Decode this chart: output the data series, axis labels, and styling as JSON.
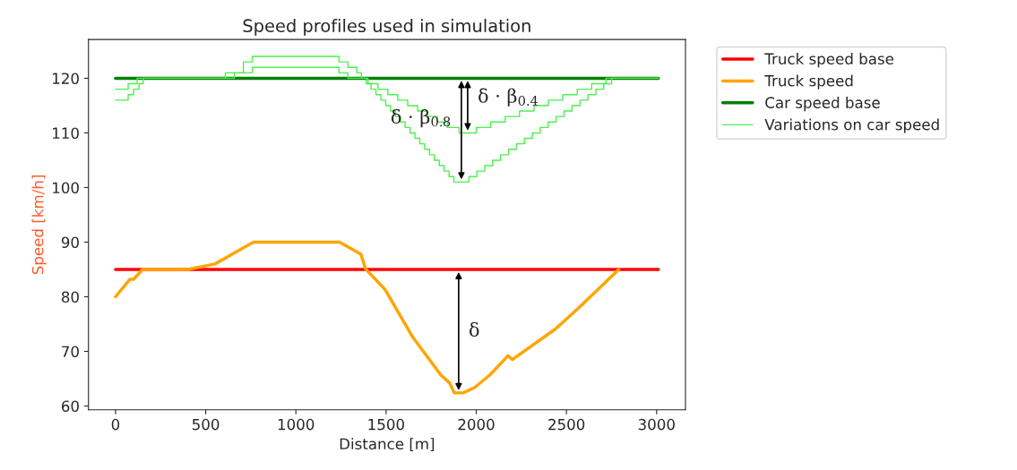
{
  "chart_data": {
    "type": "line",
    "title": "Speed profiles used in simulation",
    "xlabel": "Distance [m]",
    "ylabel": "Speed [km/h]",
    "xlim": [
      -150,
      3160
    ],
    "ylim": [
      59.3,
      127.1
    ],
    "xticks": [
      0,
      500,
      1000,
      1500,
      2000,
      2500,
      3000
    ],
    "yticks": [
      60,
      70,
      80,
      90,
      100,
      110,
      120
    ],
    "grid": false,
    "legend": "right",
    "series": [
      {
        "name": "Truck speed base",
        "color": "#ff0000",
        "x": [
          0,
          3010
        ],
        "values": [
          85,
          85
        ]
      },
      {
        "name": "Truck speed",
        "color": "#ffa500",
        "x": [
          0,
          80,
          100,
          150,
          400,
          551,
          765,
          1242,
          1361,
          1386,
          1495,
          1644,
          1803,
          1853,
          1878,
          1927,
          1992,
          2076,
          2176,
          2200,
          2439,
          2573,
          2790
        ],
        "values": [
          80,
          83.2,
          83.2,
          85,
          85,
          86,
          90,
          90,
          87.8,
          85.1,
          81.3,
          72.8,
          65.7,
          64.2,
          62.4,
          62.4,
          63.4,
          65.7,
          69.2,
          68.5,
          74.1,
          78.1,
          85
        ]
      },
      {
        "name": "Car speed base",
        "color": "#008000",
        "x": [
          0,
          3010
        ],
        "values": [
          120,
          120
        ]
      },
      {
        "name": "Variations on car speed",
        "color": "#4cf04c",
        "type": "step",
        "x": [
          0,
          70,
          100,
          130,
          154,
          609,
          709,
          758,
          1239,
          1288,
          1338,
          1363,
          1390,
          1417,
          1444,
          1471,
          1498,
          1525,
          1552,
          1579,
          1606,
          1633,
          1660,
          1687,
          1714,
          1741,
          1768,
          1795,
          1822,
          1849,
          1876,
          1959,
          2003,
          2047,
          2091,
          2135,
          2179,
          2223,
          2267,
          2311,
          2355,
          2399,
          2443,
          2487,
          2531,
          2575,
          2619,
          2663,
          2707,
          2751,
          3010
        ],
        "values": [
          116,
          117,
          118,
          119,
          120,
          121,
          123,
          124,
          123,
          122,
          121,
          120,
          119,
          118,
          117,
          116,
          115,
          114,
          113,
          112,
          111,
          110,
          109,
          108,
          107,
          106,
          105,
          104,
          103,
          102,
          101,
          102,
          103,
          104,
          105,
          106,
          107,
          108,
          109,
          110,
          111,
          112,
          113,
          114,
          115,
          116,
          117,
          118,
          119,
          120,
          120
        ]
      },
      {
        "color": "#4cf04c",
        "type": "step",
        "x": [
          0,
          70,
          120,
          659,
          758,
          1239,
          1288,
          1400,
          1455,
          1510,
          1565,
          1620,
          1675,
          1730,
          1785,
          1840,
          1905,
          2000,
          2080,
          2160,
          2240,
          2320,
          2400,
          2480,
          2560,
          2640,
          2720,
          3010
        ],
        "values": [
          118,
          119,
          120,
          121,
          122,
          121,
          120,
          119,
          118,
          117,
          116,
          115,
          114,
          113,
          112,
          111,
          110,
          111,
          112,
          113,
          114,
          115,
          116,
          117,
          118,
          119,
          120,
          120
        ]
      }
    ],
    "annotations": [
      {
        "text": "δ · β$_{0.8}$",
        "x": 1890,
        "y": 111
      },
      "δ · β$_{0.4}$",
      "δ"
    ]
  }
}
